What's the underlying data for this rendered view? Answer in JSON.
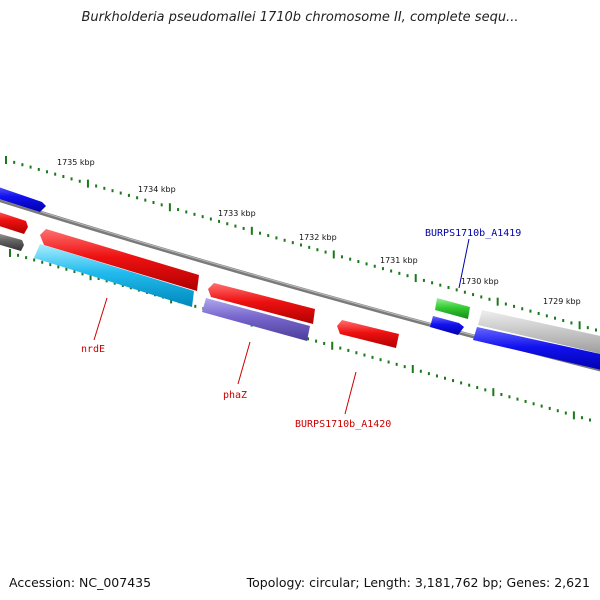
{
  "header": {
    "title": "Burkholderia pseudomallei 1710b chromosome II, complete sequ..."
  },
  "footer": {
    "accession": "Accession: NC_007435",
    "topology": "Topology: circular; Length: 3,181,762 bp; Genes: 2,621"
  },
  "scale": {
    "unit": "kbp",
    "tick_labels": [
      "1735 kbp",
      "1734 kbp",
      "1733 kbp",
      "1732 kbp",
      "1731 kbp",
      "1730 kbp",
      "1729 kbp"
    ]
  },
  "labels": {
    "gene_a1419": "BURPS1710b_A1419",
    "nrdE": "nrdE",
    "phaZ": "phaZ",
    "gene_a1420": "BURPS1710b_A1420"
  },
  "colors": {
    "backbone": "#808080",
    "tick": "#1a7a1a",
    "red_gene": "#ee1111",
    "cyan_gene": "#22bbee",
    "purple_gene": "#7766cc",
    "blue_gene": "#1111ee",
    "green_gene": "#33cc33",
    "gray_gene": "#c8c8c8",
    "dark_gray_gene": "#606060",
    "label_red": "#cc0000",
    "label_blue": "#0000aa"
  }
}
